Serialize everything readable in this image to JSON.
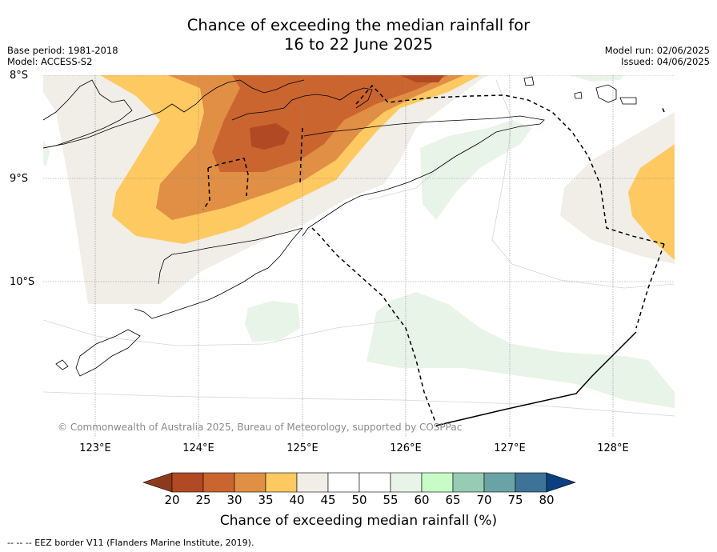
{
  "title_line1": "Chance of exceeding the median rainfall for",
  "title_line2": "16 to 22 June 2025",
  "base_period": "Base period: 1981-2018",
  "model": "Model: ACCESS-S2",
  "model_run": "Model run: 02/06/2025",
  "issued": "Issued: 04/06/2025",
  "lat_labels": [
    "8°S",
    "9°S",
    "10°S"
  ],
  "lon_labels": [
    "123°E",
    "124°E",
    "125°E",
    "126°E",
    "127°E",
    "128°E"
  ],
  "copyright": "© Commonwealth of Australia 2025, Bureau of Meteorology, supported by COSPPac",
  "colorbar": {
    "ticks": [
      "20",
      "25",
      "30",
      "35",
      "40",
      "45",
      "50",
      "55",
      "60",
      "65",
      "70",
      "75",
      "80"
    ],
    "under_color": "#8c3a1e",
    "over_color": "#0b3f80",
    "colors": [
      "#b14a24",
      "#ca6530",
      "#e08f45",
      "#fec960",
      "#f1ede7",
      "#ffffff",
      "#ffffff",
      "#e9f4e8",
      "#c8fcc6",
      "#97cbb3",
      "#6aa3a5",
      "#3d7397"
    ],
    "label": "Chance of exceeding median rainfall (%)"
  },
  "eez_note": "--  --  -- EEZ border V11 (Flanders Marine Institute, 2019)."
}
